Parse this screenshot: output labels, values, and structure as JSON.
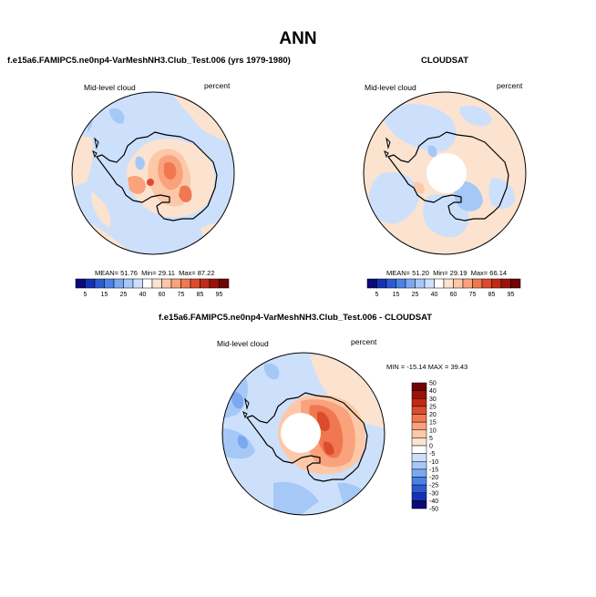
{
  "title": "ANN",
  "panels": [
    {
      "id": "model",
      "header": "f.e15a6.FAMIPC5.ne0np4-VarMeshNH3.Club_Test.006 (yrs 1979-1980)",
      "left_label": "Mid-level cloud",
      "right_label": "percent",
      "stats": {
        "mean_label": "MEAN=",
        "mean": "51.76",
        "min_label": "Min=",
        "min": "29.11",
        "max_label": "Max=",
        "max": "87.22"
      }
    },
    {
      "id": "obs",
      "header": "CLOUDSAT",
      "left_label": "Mid-level cloud",
      "right_label": "percent",
      "stats": {
        "mean_label": "MEAN=",
        "mean": "51.20",
        "min_label": "Min=",
        "min": "29.19",
        "max_label": "Max=",
        "max": "66.14"
      }
    },
    {
      "id": "diff",
      "header": "f.e15a6.FAMIPC5.ne0np4-VarMeshNH3.Club_Test.006 - CLOUDSAT",
      "left_label": "Mid-level cloud",
      "right_label": "percent",
      "minmax": "MIN = -15.14  MAX =  39.43"
    }
  ],
  "chart_data": [
    {
      "type": "heatmap",
      "title": "f.e15a6.FAMIPC5.ne0np4-VarMeshNH3.Club_Test.006 (yrs 1979-1980)",
      "subtitle": "Mid-level cloud",
      "units": "percent",
      "projection": "south polar stereographic",
      "mean": 51.76,
      "min": 29.11,
      "max": 87.22,
      "colorbar": {
        "levels": [
          5,
          10,
          15,
          20,
          25,
          30,
          40,
          50,
          60,
          65,
          70,
          75,
          80,
          85,
          90,
          95
        ],
        "tick_labels": [
          "5",
          "15",
          "25",
          "40",
          "60",
          "75",
          "85",
          "95"
        ],
        "colors": [
          "#0a0a78",
          "#1432b4",
          "#2d5ad2",
          "#4b82e6",
          "#7ba9f0",
          "#a5c8f7",
          "#cde0fb",
          "#ffffff",
          "#fbe3cf",
          "#fcc8a8",
          "#f9a27c",
          "#f07850",
          "#dd4b2d",
          "#c02a18",
          "#9a1209",
          "#6e0404"
        ]
      }
    },
    {
      "type": "heatmap",
      "title": "CLOUDSAT",
      "subtitle": "Mid-level cloud",
      "units": "percent",
      "projection": "south polar stereographic",
      "mean": 51.2,
      "min": 29.19,
      "max": 66.14,
      "colorbar": {
        "levels": [
          5,
          10,
          15,
          20,
          25,
          30,
          40,
          50,
          60,
          65,
          70,
          75,
          80,
          85,
          90,
          95
        ],
        "tick_labels": [
          "5",
          "15",
          "25",
          "40",
          "60",
          "75",
          "85",
          "95"
        ],
        "colors": [
          "#0a0a78",
          "#1432b4",
          "#2d5ad2",
          "#4b82e6",
          "#7ba9f0",
          "#a5c8f7",
          "#cde0fb",
          "#ffffff",
          "#fbe3cf",
          "#fcc8a8",
          "#f9a27c",
          "#f07850",
          "#dd4b2d",
          "#c02a18",
          "#9a1209",
          "#6e0404"
        ]
      }
    },
    {
      "type": "heatmap",
      "title": "f.e15a6.FAMIPC5.ne0np4-VarMeshNH3.Club_Test.006 - CLOUDSAT",
      "subtitle": "Mid-level cloud",
      "units": "percent",
      "projection": "south polar stereographic",
      "min": -15.14,
      "max": 39.43,
      "colorbar": {
        "orientation": "vertical",
        "tick_labels": [
          "50",
          "40",
          "30",
          "25",
          "20",
          "15",
          "10",
          "5",
          "0",
          "-5",
          "-10",
          "-15",
          "-20",
          "-25",
          "-30",
          "-40",
          "-50"
        ],
        "colors": [
          "#6e0404",
          "#9a1209",
          "#c02a18",
          "#dd4b2d",
          "#f07850",
          "#f9a27c",
          "#fcc8a8",
          "#fbe3cf",
          "#ffffff",
          "#cde0fb",
          "#a5c8f7",
          "#7ba9f0",
          "#4b82e6",
          "#2d5ad2",
          "#1432b4",
          "#0a0a78"
        ]
      }
    }
  ]
}
